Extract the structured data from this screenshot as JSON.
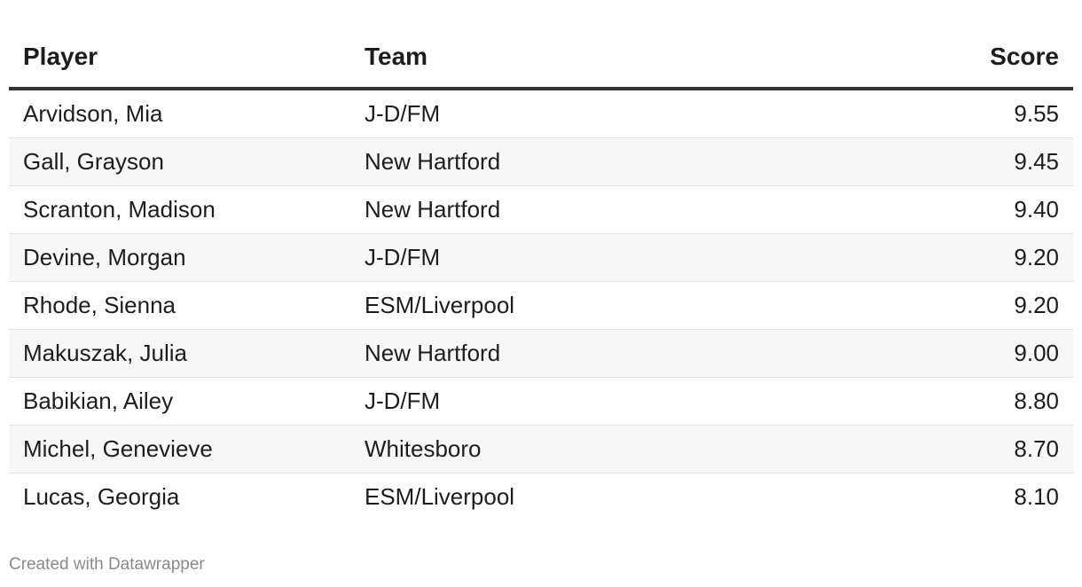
{
  "table": {
    "header": [
      "Player",
      "Team",
      "Score"
    ],
    "rows": [
      [
        "Arvidson, Mia",
        "J-D/FM",
        "9.55"
      ],
      [
        "Gall, Grayson",
        "New Hartford",
        "9.45"
      ],
      [
        "Scranton, Madison",
        "New Hartford",
        "9.40"
      ],
      [
        "Devine, Morgan",
        "J-D/FM",
        "9.20"
      ],
      [
        "Rhode, Sienna",
        "ESM/Liverpool",
        "9.20"
      ],
      [
        "Makuszak, Julia",
        "New Hartford",
        "9.00"
      ],
      [
        "Babikian, Ailey",
        "J-D/FM",
        "8.80"
      ],
      [
        "Michel, Genevieve",
        "Whitesboro",
        "8.70"
      ],
      [
        "Lucas, Georgia",
        "ESM/Liverpool",
        "8.10"
      ]
    ]
  },
  "footer": "Created with Datawrapper"
}
